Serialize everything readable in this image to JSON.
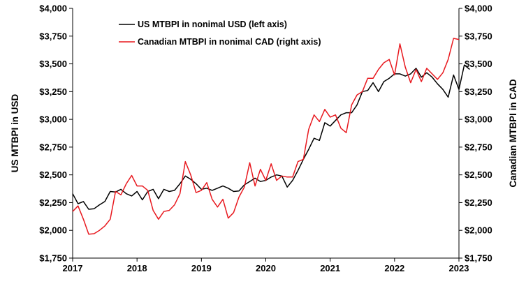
{
  "chart_data": {
    "type": "line",
    "title": "",
    "xlabel": "",
    "ylabel": "US MTBPI in USD",
    "ylabel_right": "Canadian MTBPI in CAD",
    "xlim": [
      2017,
      2023
    ],
    "ylim": [
      1750,
      4000
    ],
    "ylim_right": [
      1750,
      4000
    ],
    "x_ticks": [
      2017,
      2018,
      2019,
      2020,
      2021,
      2022,
      2023
    ],
    "x_tick_labels": [
      "2017",
      "2018",
      "2019",
      "2020",
      "2021",
      "2022",
      "2023"
    ],
    "y_ticks": [
      1750,
      2000,
      2250,
      2500,
      2750,
      3000,
      3250,
      3500,
      3750,
      4000
    ],
    "y_tick_labels": [
      "$1,750",
      "$2,000",
      "$2,250",
      "$2,500",
      "$2,750",
      "$3,000",
      "$3,250",
      "$3,500",
      "$3,750",
      "$4,000"
    ],
    "y_tick_labels_right": [
      "$1,750",
      "$2,000",
      "$2,250",
      "$2,500",
      "$2,750",
      "$3,000",
      "$3,250",
      "$3,500",
      "$3,750",
      "$4,000"
    ],
    "grid": false,
    "legend_position": "top-left",
    "series": [
      {
        "name": "US MTBPI in nonimal USD (left axis)",
        "axis": "left",
        "color": "#000000",
        "x_start": 2017,
        "x_step_months": 1,
        "values": [
          2330,
          2240,
          2260,
          2190,
          2195,
          2230,
          2260,
          2350,
          2345,
          2370,
          2330,
          2310,
          2350,
          2275,
          2350,
          2370,
          2285,
          2370,
          2350,
          2360,
          2420,
          2490,
          2460,
          2420,
          2370,
          2380,
          2360,
          2380,
          2400,
          2380,
          2350,
          2355,
          2410,
          2440,
          2470,
          2440,
          2450,
          2480,
          2500,
          2490,
          2390,
          2450,
          2540,
          2640,
          2730,
          2830,
          2810,
          2970,
          2940,
          2990,
          3040,
          3060,
          3060,
          3130,
          3250,
          3260,
          3330,
          3250,
          3340,
          3370,
          3410,
          3410,
          3390,
          3410,
          3460,
          3380,
          3420,
          3380,
          3320,
          3270,
          3200,
          3400,
          3270,
          3490,
          3450
        ]
      },
      {
        "name": "Canadian MTBPI in nonimal CAD (right axis)",
        "axis": "right",
        "color": "#e8191f",
        "x_start": 2017,
        "x_step_months": 1,
        "values": [
          2170,
          2220,
          2100,
          1965,
          1970,
          2000,
          2040,
          2100,
          2350,
          2320,
          2420,
          2495,
          2400,
          2400,
          2360,
          2180,
          2100,
          2170,
          2180,
          2230,
          2330,
          2620,
          2500,
          2340,
          2360,
          2430,
          2280,
          2210,
          2280,
          2110,
          2160,
          2300,
          2390,
          2610,
          2400,
          2550,
          2450,
          2600,
          2450,
          2490,
          2480,
          2480,
          2620,
          2640,
          2910,
          3040,
          2980,
          3090,
          3020,
          3040,
          2920,
          2880,
          3130,
          3220,
          3250,
          3370,
          3370,
          3450,
          3510,
          3540,
          3400,
          3680,
          3470,
          3330,
          3450,
          3340,
          3460,
          3410,
          3360,
          3420,
          3540,
          3730,
          3720
        ]
      }
    ],
    "colors": {
      "us_line": "#000000",
      "ca_line": "#e8191f",
      "axis": "#000000"
    }
  }
}
